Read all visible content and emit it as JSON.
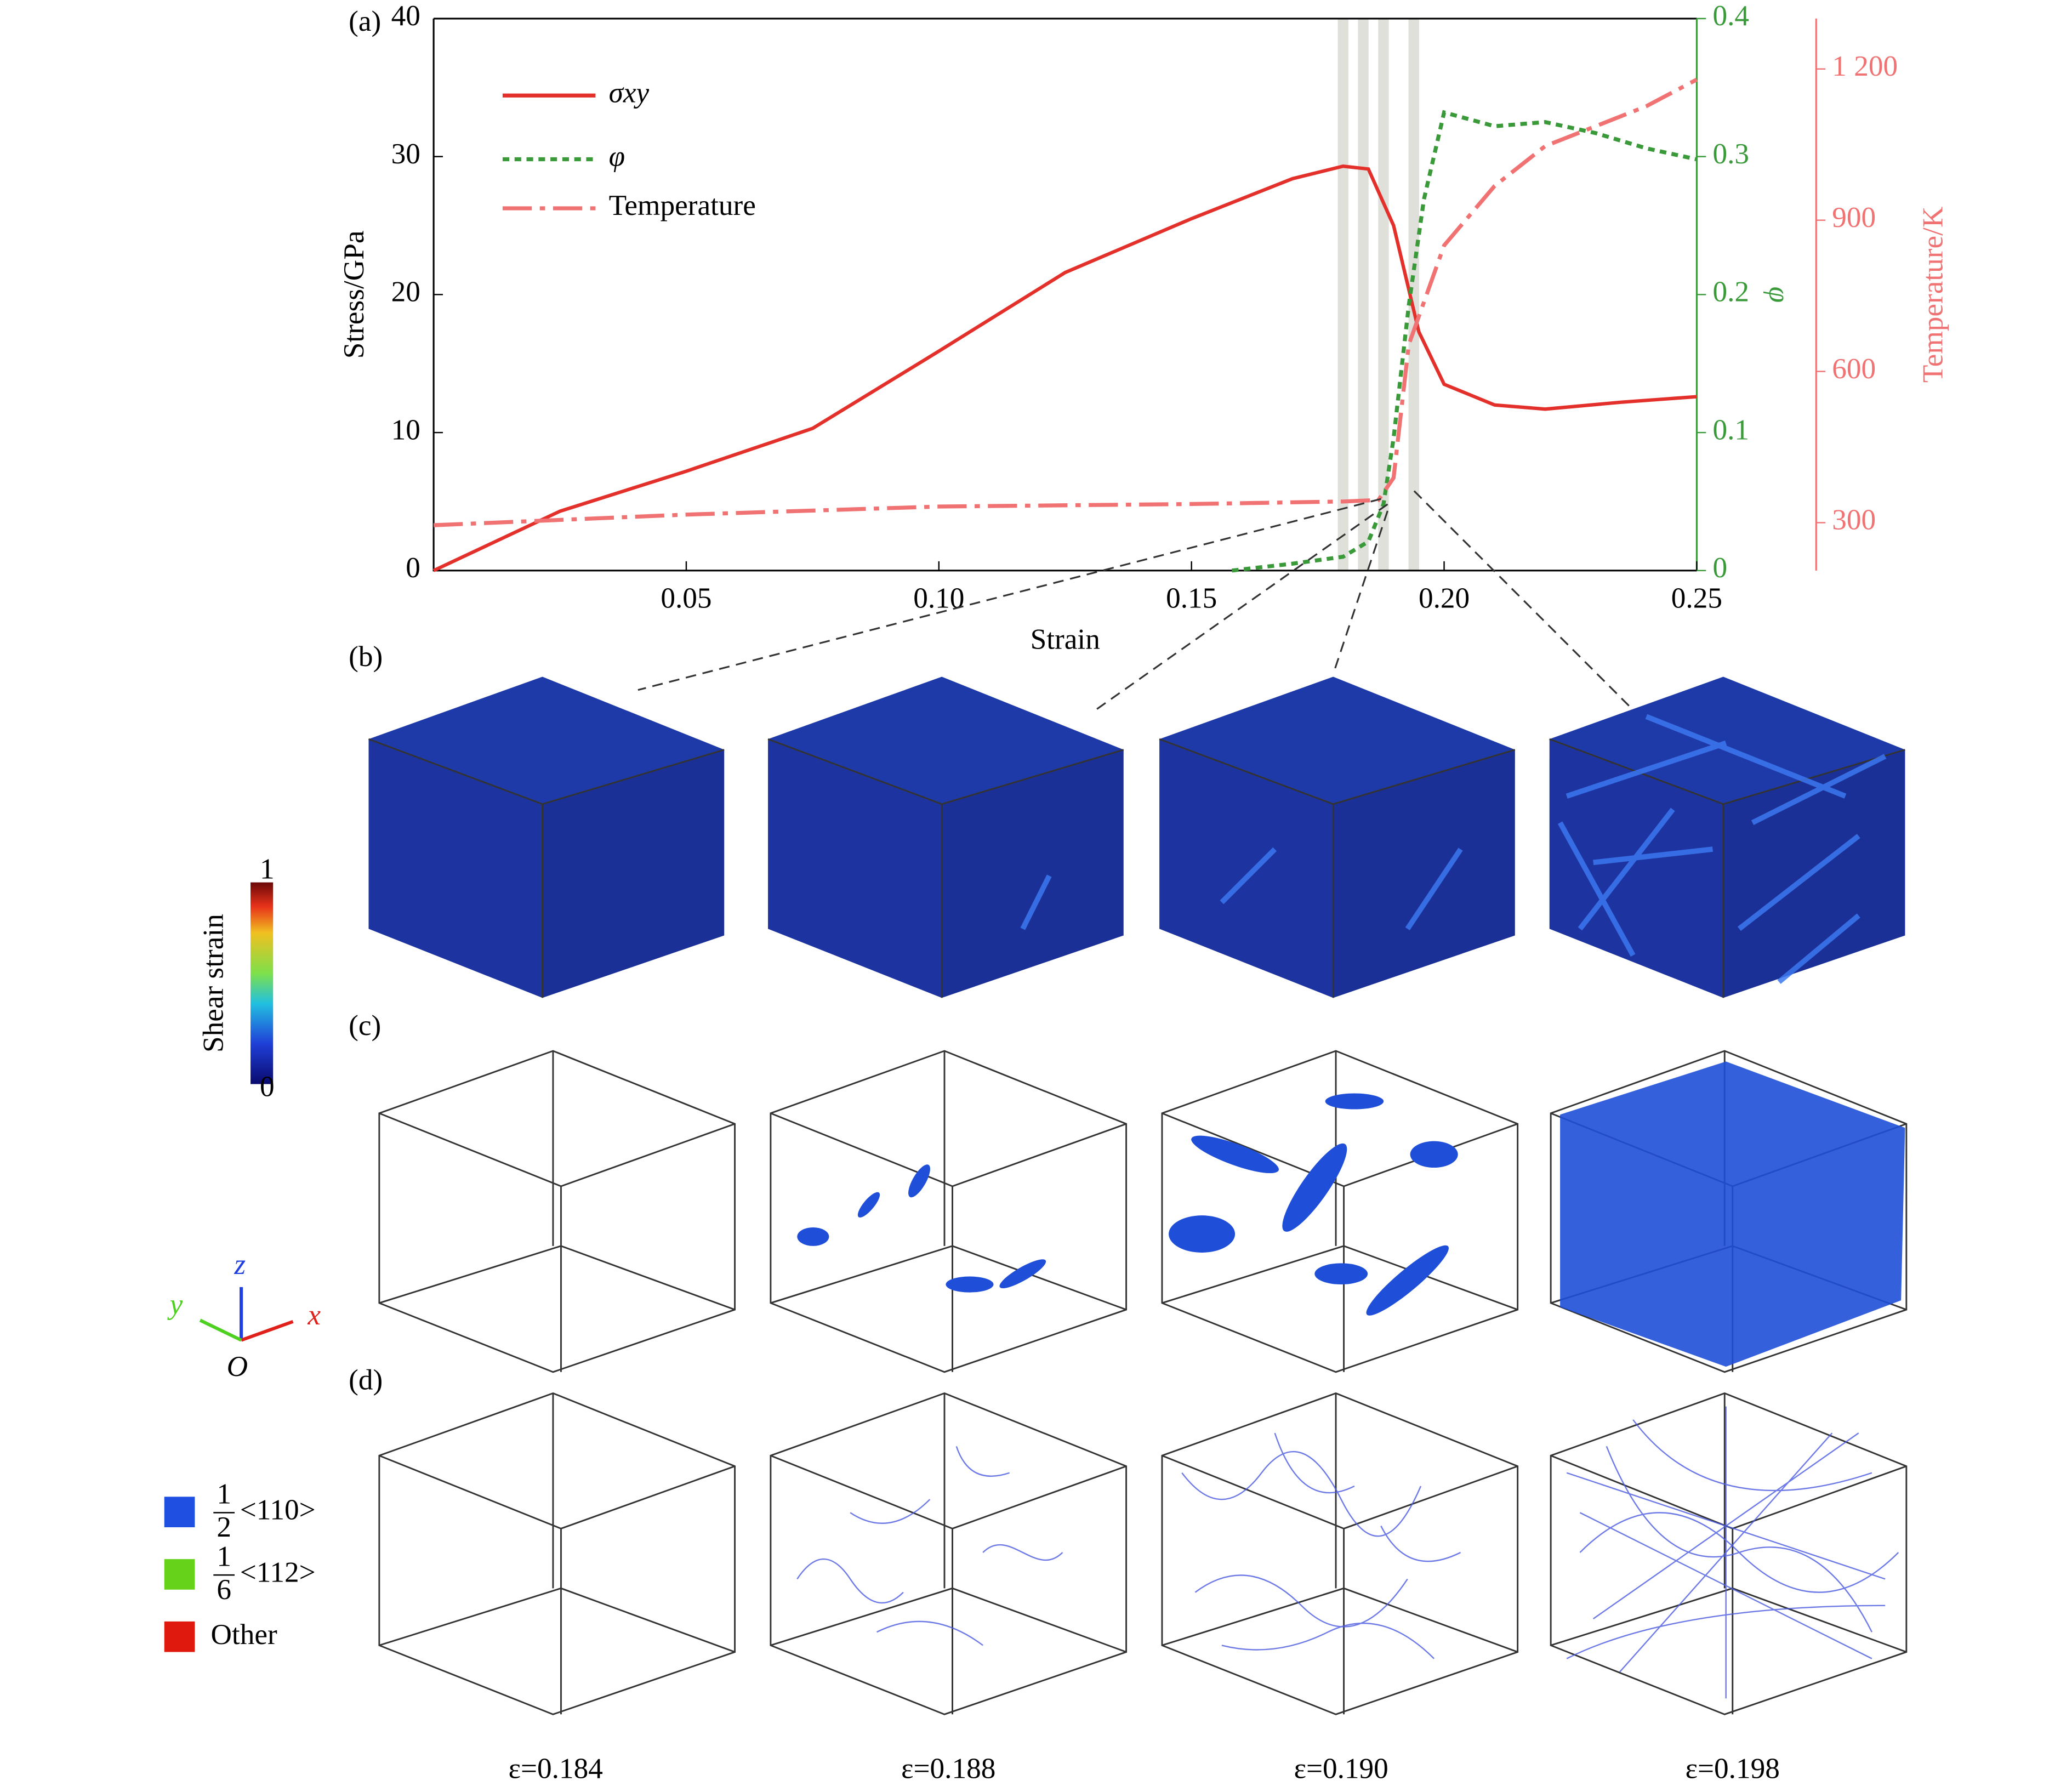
{
  "chart_data": {
    "type": "line",
    "xlabel": "Strain",
    "ylabel": "Stress/GPa",
    "y2label": "φ",
    "y3label": "Temperature/K",
    "xlim": [
      0,
      0.25
    ],
    "xticks": [
      0.05,
      {
        "value": 0.1,
        "label": "0.10"
      },
      0.15,
      {
        "value": 0.2,
        "label": "0.20"
      },
      0.25
    ],
    "ylim": [
      0,
      40
    ],
    "yticks": [
      0,
      10,
      20,
      30,
      40
    ],
    "y2lim": [
      0,
      0.4
    ],
    "y2ticks": [
      0,
      0.1,
      0.2,
      0.3,
      0.4
    ],
    "y3lim": [
      205,
      1300
    ],
    "y3ticks": [
      300,
      600,
      900,
      {
        "value": 1200,
        "label": "1 200"
      }
    ],
    "legend": "upper left",
    "bands": [
      0.18,
      0.184,
      0.188,
      0.194
    ],
    "series": [
      {
        "name": "σxy",
        "color": "#e4302a",
        "style": "solid",
        "axis": "y",
        "x": [
          0,
          0.025,
          0.05,
          0.075,
          0.1,
          0.125,
          0.15,
          0.17,
          0.18,
          0.185,
          0.19,
          0.195,
          0.2,
          0.21,
          0.22,
          0.235,
          0.25
        ],
        "values": [
          0,
          4.3,
          7.2,
          10.3,
          15.9,
          21.6,
          25.5,
          28.4,
          29.3,
          29.1,
          25.0,
          17.3,
          13.5,
          12.0,
          11.7,
          12.2,
          12.6
        ]
      },
      {
        "name": "φ",
        "color": "#3a9a3a",
        "style": "dotted",
        "axis": "y2",
        "x": [
          0.158,
          0.17,
          0.18,
          0.185,
          0.188,
          0.19,
          0.193,
          0.196,
          0.2,
          0.21,
          0.22,
          0.23,
          0.24,
          0.25
        ],
        "values": [
          0,
          0.005,
          0.01,
          0.021,
          0.048,
          0.096,
          0.192,
          0.269,
          0.332,
          0.322,
          0.325,
          0.317,
          0.306,
          0.298
        ]
      },
      {
        "name": "Temperature",
        "color": "#f07272",
        "style": "dashdot",
        "axis": "y3",
        "x": [
          0,
          0.05,
          0.1,
          0.15,
          0.18,
          0.187,
          0.19,
          0.193,
          0.2,
          0.21,
          0.22,
          0.24,
          0.25
        ],
        "values": [
          295,
          316,
          332,
          337,
          342,
          345,
          389,
          653,
          850,
          968,
          1047,
          1126,
          1179
        ]
      }
    ]
  },
  "panel_labels": [
    "(a)",
    "(b)",
    "(c)",
    "(d)"
  ],
  "colorbar": {
    "label": "Shear strain",
    "ticks": [
      0,
      1
    ]
  },
  "triad": {
    "x": "x",
    "y": "y",
    "z": "z",
    "origin": "O"
  },
  "dislocation_legend": [
    {
      "numerator": "1",
      "denominator": "2",
      "direction": "<110>",
      "color": "#1f4fe0"
    },
    {
      "numerator": "1",
      "denominator": "6",
      "direction": "<112>",
      "color": "#66d21a"
    },
    {
      "label": "Other",
      "color": "#e0190f"
    }
  ],
  "snapshots": [
    "ε=0.184",
    "ε=0.188",
    "ε=0.190",
    "ε=0.198"
  ]
}
